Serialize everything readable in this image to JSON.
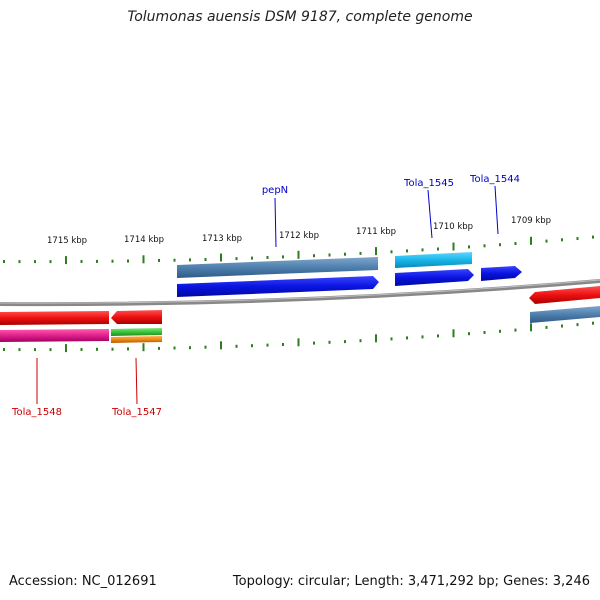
{
  "title": "Tolumonas auensis DSM 9187, complete genome",
  "footer": {
    "accession": "Accession: NC_012691",
    "summary": "Topology: circular; Length: 3,471,292 bp; Genes: 3,246"
  },
  "ruler": {
    "labels": [
      "1715 kbp",
      "1714 kbp",
      "1713 kbp",
      "1712 kbp",
      "1711 kbp",
      "1710 kbp",
      "1709 kbp"
    ]
  },
  "gene_labels_top": [
    {
      "text": "pepN",
      "color": "#0000cc"
    },
    {
      "text": "Tola_1545",
      "color": "#0000cc"
    },
    {
      "text": "Tola_1544",
      "color": "#0000cc"
    }
  ],
  "gene_labels_bottom": [
    {
      "text": "Tola_1548",
      "color": "#cc0000"
    },
    {
      "text": "Tola_1547",
      "color": "#cc0000"
    }
  ],
  "colors": {
    "backbone": "#888888",
    "ticks": "#2e7d1e",
    "steelblue": "#4f7fae",
    "blue": "#0a14e0",
    "cyan": "#19b6e8",
    "red": "#ee1010",
    "magenta": "#e0208a",
    "green": "#3cc43c",
    "orange": "#f08a10"
  }
}
